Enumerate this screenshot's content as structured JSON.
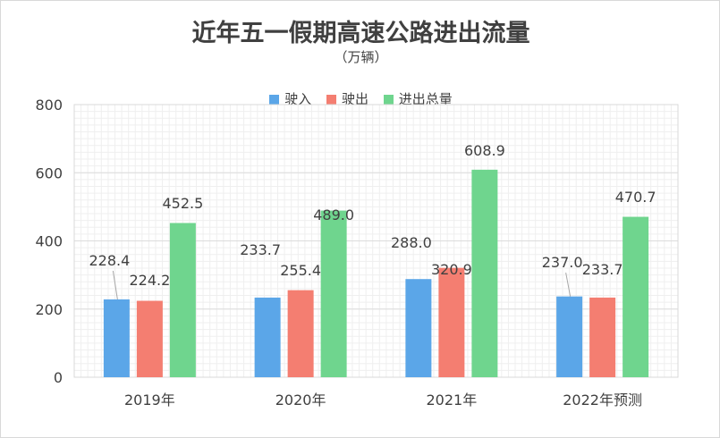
{
  "chart_data": {
    "type": "bar",
    "title": "近年五一假期高速公路进出流量",
    "subtitle": "（万辆）",
    "categories": [
      "2019年",
      "2020年",
      "2021年",
      "2022年预测"
    ],
    "series": [
      {
        "name": "驶入",
        "color": "#5ba6e8",
        "values": [
          228.4,
          233.7,
          288.0,
          237.0
        ],
        "labels": [
          "228.4",
          "233.7",
          "288.0",
          "237.0"
        ]
      },
      {
        "name": "驶出",
        "color": "#f47e71",
        "values": [
          224.2,
          255.4,
          320.9,
          233.7
        ],
        "labels": [
          "224.2",
          "255.4",
          "320.9",
          "233.7"
        ]
      },
      {
        "name": "进出总量",
        "color": "#6fd58e",
        "values": [
          452.5,
          489.0,
          608.9,
          470.7
        ],
        "labels": [
          "452.5",
          "489.0",
          "608.9",
          "470.7"
        ]
      }
    ],
    "ylim": [
      0,
      800
    ],
    "yticks": [
      0,
      200,
      400,
      600,
      800
    ],
    "grid": true,
    "legend_position": "top"
  }
}
